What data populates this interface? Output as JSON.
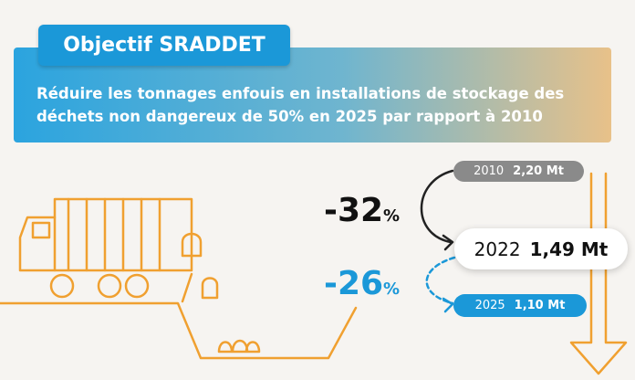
{
  "header": {
    "title": "Objectif SRADDET",
    "text": "Réduire les tonnages enfouis en installations de stockage des déchets non dangereux de 50% en 2025 par rapport à 2010"
  },
  "changes": [
    {
      "value": "-32",
      "unit": "%"
    },
    {
      "value": "-26",
      "unit": "%"
    }
  ],
  "milestones": [
    {
      "year": "2010",
      "amount": "2,20 Mt"
    },
    {
      "year": "2022",
      "amount": "1,49 Mt"
    },
    {
      "year": "2025",
      "amount": "1,10 Mt"
    }
  ]
}
